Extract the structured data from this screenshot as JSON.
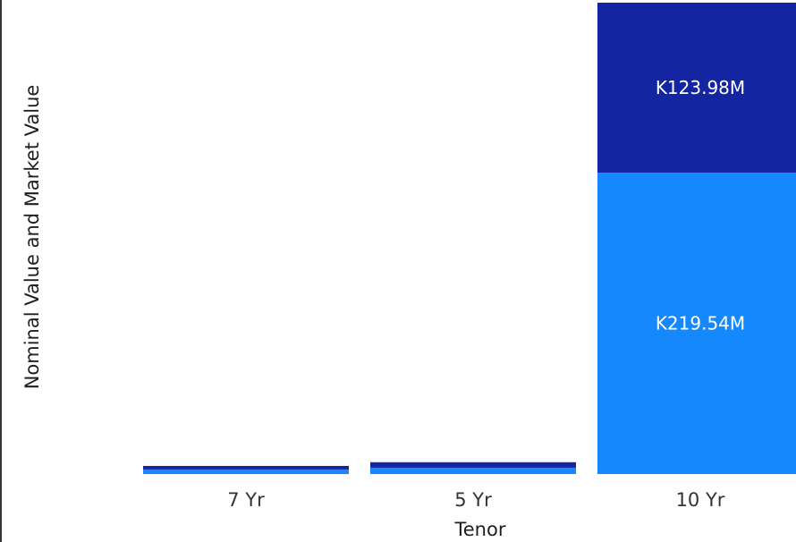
{
  "chart_data": {
    "type": "bar",
    "stacked": true,
    "xlabel": "Tenor",
    "ylabel": "Nominal Value and Market Value",
    "categories": [
      "7 Yr",
      "5 Yr",
      "10 Yr"
    ],
    "ylim": [
      0,
      343.52
    ],
    "series": [
      {
        "color": "#1488fc",
        "values": [
          3.3,
          4.6,
          219.54
        ],
        "labels": [
          "",
          "",
          "K219.54M"
        ]
      },
      {
        "color": "#1325a0",
        "values": [
          2.6,
          4.0,
          123.98
        ],
        "labels": [
          "",
          "",
          "K123.98M"
        ]
      }
    ],
    "grid": false,
    "legend": "none"
  }
}
